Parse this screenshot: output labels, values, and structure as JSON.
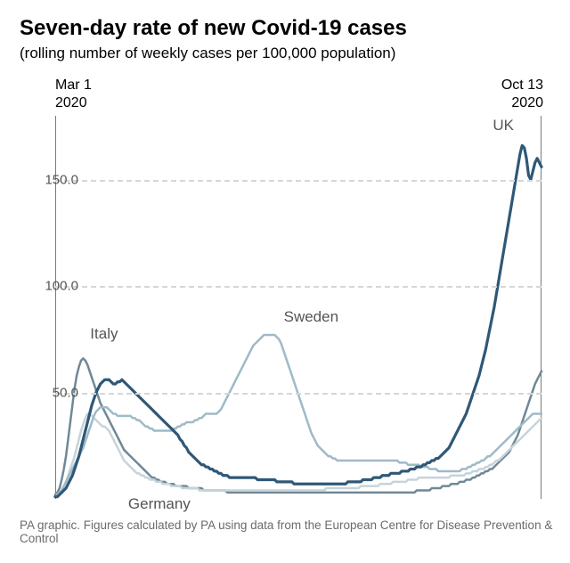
{
  "title": "Seven-day rate of new Covid-19 cases",
  "subtitle": "(rolling number of weekly cases per 100,000 population)",
  "date_start": "Mar 1\n2020",
  "date_end": "Oct 13\n2020",
  "source": "PA graphic. Figures calculated by PA using data from the European Centre for Disease Prevention & Control",
  "chart": {
    "type": "line",
    "background_color": "#ffffff",
    "grid_color": "#d6d6d6",
    "vline_color": "#7a7a7a",
    "ylim": [
      0,
      180
    ],
    "yticks": [
      50.0,
      100.0,
      150.0
    ],
    "ytick_labels": [
      "50.0",
      "100.0",
      "150.0"
    ],
    "ytick_color": "#555555",
    "ytick_fontsize": 15,
    "x_count": 227,
    "line_width": 2.5,
    "uk_line_width": 3.2,
    "title_fontsize": 24,
    "subtitle_fontsize": 17,
    "label_fontsize": 17,
    "label_color": "#555555",
    "source_fontsize": 13.5,
    "source_color": "#6b6b6b",
    "series": [
      {
        "name": "Italy",
        "label": "Italy",
        "color": "#708896",
        "label_x_frac": 0.072,
        "label_y_val": 74,
        "values": [
          2,
          3,
          5,
          9,
          14,
          20,
          28,
          36,
          44,
          52,
          58,
          62,
          65,
          66,
          65,
          63,
          60,
          57,
          54,
          51,
          48,
          45,
          43,
          41,
          39,
          37,
          35,
          33,
          31,
          29,
          27,
          25,
          23,
          22,
          21,
          20,
          19,
          18,
          17,
          16,
          15,
          14,
          13,
          12,
          11,
          10,
          10,
          9,
          9,
          8,
          8,
          8,
          7,
          7,
          7,
          7,
          6,
          6,
          6,
          6,
          6,
          6,
          5,
          5,
          5,
          5,
          5,
          5,
          5,
          4,
          4,
          4,
          4,
          4,
          4,
          4,
          4,
          4,
          4,
          4,
          3,
          3,
          3,
          3,
          3,
          3,
          3,
          3,
          3,
          3,
          3,
          3,
          3,
          3,
          3,
          3,
          3,
          3,
          3,
          3,
          3,
          3,
          3,
          3,
          3,
          3,
          3,
          3,
          3,
          3,
          3,
          3,
          3,
          3,
          3,
          3,
          3,
          3,
          3,
          3,
          3,
          3,
          3,
          3,
          3,
          3,
          3,
          3,
          3,
          3,
          3,
          3,
          3,
          3,
          3,
          3,
          3,
          3,
          3,
          3,
          3,
          3,
          3,
          3,
          3,
          3,
          3,
          3,
          3,
          3,
          3,
          3,
          3,
          3,
          3,
          3,
          3,
          3,
          3,
          3,
          3,
          3,
          3,
          3,
          3,
          3,
          3,
          3,
          4,
          4,
          4,
          4,
          4,
          4,
          4,
          5,
          5,
          5,
          5,
          5,
          6,
          6,
          6,
          6,
          7,
          7,
          7,
          7,
          8,
          8,
          8,
          9,
          9,
          9,
          10,
          10,
          11,
          11,
          12,
          12,
          13,
          13,
          14,
          14,
          15,
          16,
          17,
          18,
          19,
          20,
          21,
          22,
          24,
          26,
          28,
          30,
          33,
          36,
          39,
          42,
          45,
          48,
          51,
          54,
          56,
          58,
          60
        ]
      },
      {
        "name": "Germany",
        "label": "Germany",
        "color": "#c6d4da",
        "label_x_frac": 0.15,
        "label_y_val": -6,
        "values": [
          1,
          2,
          3,
          4,
          6,
          8,
          11,
          14,
          17,
          20,
          24,
          28,
          32,
          35,
          38,
          40,
          40,
          39,
          38,
          37,
          36,
          35,
          34,
          34,
          33,
          32,
          30,
          28,
          26,
          24,
          22,
          20,
          18,
          17,
          16,
          15,
          14,
          13,
          12,
          12,
          11,
          11,
          10,
          10,
          9,
          9,
          9,
          8,
          8,
          8,
          7,
          7,
          7,
          7,
          6,
          6,
          6,
          6,
          6,
          5,
          5,
          5,
          5,
          5,
          5,
          5,
          5,
          4,
          4,
          4,
          4,
          4,
          4,
          4,
          4,
          4,
          4,
          4,
          4,
          4,
          4,
          4,
          4,
          4,
          4,
          4,
          4,
          4,
          4,
          4,
          4,
          4,
          4,
          4,
          4,
          4,
          4,
          4,
          4,
          4,
          4,
          4,
          4,
          4,
          4,
          4,
          4,
          4,
          4,
          4,
          4,
          4,
          4,
          4,
          4,
          4,
          4,
          4,
          4,
          4,
          4,
          4,
          4,
          4,
          4,
          4,
          5,
          5,
          5,
          5,
          5,
          5,
          5,
          5,
          5,
          5,
          5,
          5,
          5,
          5,
          5,
          5,
          6,
          6,
          6,
          6,
          6,
          6,
          6,
          6,
          6,
          7,
          7,
          7,
          7,
          7,
          7,
          8,
          8,
          8,
          8,
          8,
          8,
          8,
          9,
          9,
          9,
          9,
          9,
          10,
          10,
          10,
          10,
          10,
          10,
          10,
          10,
          10,
          10,
          10,
          10,
          10,
          10,
          10,
          11,
          11,
          11,
          11,
          11,
          11,
          11,
          12,
          12,
          12,
          13,
          13,
          13,
          14,
          14,
          14,
          15,
          15,
          16,
          16,
          17,
          18,
          18,
          19,
          20,
          21,
          22,
          23,
          24,
          25,
          26,
          27,
          28,
          29,
          30,
          31,
          32,
          33,
          34,
          35,
          36,
          37,
          38
        ]
      },
      {
        "name": "Sweden",
        "label": "Sweden",
        "color": "#9fbac7",
        "label_x_frac": 0.47,
        "label_y_val": 82,
        "values": [
          1,
          2,
          3,
          4,
          6,
          8,
          10,
          12,
          14,
          16,
          18,
          20,
          22,
          24,
          27,
          30,
          33,
          36,
          39,
          41,
          42,
          43,
          43,
          43,
          43,
          42,
          41,
          40,
          40,
          39,
          39,
          39,
          39,
          39,
          39,
          39,
          38,
          38,
          37,
          37,
          36,
          35,
          34,
          34,
          33,
          33,
          32,
          32,
          32,
          32,
          32,
          32,
          32,
          32,
          32,
          33,
          33,
          34,
          34,
          35,
          35,
          36,
          36,
          36,
          36,
          37,
          37,
          38,
          38,
          39,
          40,
          40,
          40,
          40,
          40,
          40,
          41,
          42,
          44,
          46,
          48,
          50,
          52,
          54,
          56,
          58,
          60,
          62,
          64,
          66,
          68,
          70,
          72,
          73,
          74,
          75,
          76,
          77,
          77,
          77,
          77,
          77,
          77,
          76,
          75,
          73,
          70,
          67,
          64,
          61,
          58,
          55,
          52,
          49,
          46,
          43,
          40,
          37,
          34,
          31,
          29,
          27,
          25,
          24,
          23,
          22,
          21,
          20,
          20,
          19,
          19,
          18,
          18,
          18,
          18,
          18,
          18,
          18,
          18,
          18,
          18,
          18,
          18,
          18,
          18,
          18,
          18,
          18,
          18,
          18,
          18,
          18,
          18,
          18,
          18,
          18,
          18,
          18,
          18,
          18,
          17,
          17,
          17,
          17,
          16,
          16,
          16,
          16,
          16,
          16,
          15,
          15,
          15,
          15,
          14,
          14,
          14,
          14,
          13,
          13,
          13,
          13,
          13,
          13,
          13,
          13,
          13,
          13,
          13,
          14,
          14,
          14,
          15,
          15,
          16,
          16,
          17,
          17,
          18,
          18,
          19,
          20,
          20,
          21,
          22,
          23,
          24,
          25,
          26,
          27,
          28,
          29,
          30,
          31,
          32,
          33,
          34,
          35,
          36,
          37,
          38,
          39,
          40,
          40,
          40,
          40,
          40
        ]
      },
      {
        "name": "UK",
        "label": "UK",
        "color": "#2f5877",
        "label_x_frac": 0.9,
        "label_y_val": 172,
        "values": [
          1,
          1,
          2,
          3,
          4,
          5,
          7,
          9,
          11,
          14,
          17,
          20,
          24,
          28,
          32,
          36,
          40,
          44,
          47,
          50,
          52,
          54,
          55,
          56,
          56,
          56,
          55,
          54,
          54,
          55,
          55,
          56,
          55,
          54,
          53,
          52,
          51,
          50,
          49,
          48,
          47,
          46,
          45,
          44,
          43,
          42,
          41,
          40,
          39,
          38,
          37,
          36,
          35,
          34,
          33,
          32,
          31,
          30,
          28,
          27,
          25,
          24,
          22,
          21,
          20,
          19,
          18,
          17,
          16,
          16,
          15,
          15,
          14,
          14,
          13,
          13,
          12,
          12,
          11,
          11,
          11,
          10,
          10,
          10,
          10,
          10,
          10,
          10,
          10,
          10,
          10,
          10,
          10,
          10,
          9,
          9,
          9,
          9,
          9,
          9,
          9,
          9,
          9,
          8,
          8,
          8,
          8,
          8,
          8,
          8,
          8,
          7,
          7,
          7,
          7,
          7,
          7,
          7,
          7,
          7,
          7,
          7,
          7,
          7,
          7,
          7,
          7,
          7,
          7,
          7,
          7,
          7,
          7,
          7,
          7,
          7,
          8,
          8,
          8,
          8,
          8,
          8,
          8,
          9,
          9,
          9,
          9,
          9,
          10,
          10,
          10,
          10,
          11,
          11,
          11,
          11,
          12,
          12,
          12,
          12,
          12,
          13,
          13,
          13,
          13,
          14,
          14,
          14,
          15,
          15,
          15,
          16,
          16,
          17,
          17,
          18,
          18,
          19,
          19,
          20,
          21,
          22,
          23,
          24,
          26,
          28,
          30,
          32,
          34,
          36,
          38,
          40,
          43,
          46,
          49,
          52,
          55,
          58,
          62,
          66,
          70,
          75,
          80,
          85,
          90,
          96,
          102,
          108,
          114,
          120,
          126,
          132,
          138,
          144,
          150,
          156,
          162,
          166,
          165,
          160,
          152,
          150,
          154,
          158,
          160,
          158,
          156
        ]
      }
    ]
  }
}
